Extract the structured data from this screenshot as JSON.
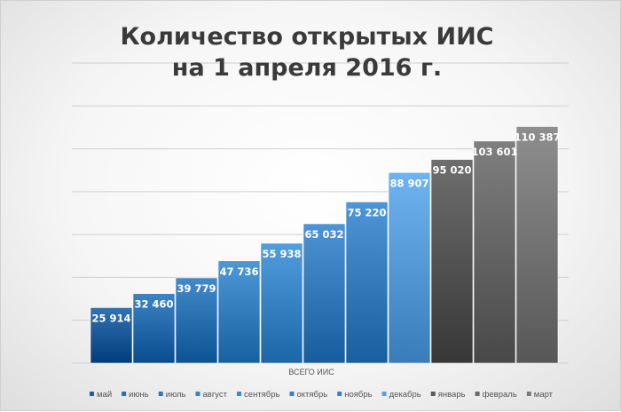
{
  "chart_data": {
    "type": "bar",
    "title": [
      "Количество открытых ИИС",
      "на 1 апреля 2016 г."
    ],
    "xlabel": "",
    "ylabel": "",
    "category": "ВСЕГО ИИС",
    "ylim": [
      0,
      140000
    ],
    "grid": true,
    "legend_position": "bottom",
    "series": [
      {
        "name": "май",
        "value": 25914,
        "label": "25 914",
        "color": "#1f5f9e"
      },
      {
        "name": "июнь",
        "value": 32460,
        "label": "32 460",
        "color": "#2a70b0"
      },
      {
        "name": "июль",
        "value": 39779,
        "label": "39 779",
        "color": "#2e76b6"
      },
      {
        "name": "август",
        "value": 47736,
        "label": "47 736",
        "color": "#3a84c4"
      },
      {
        "name": "сентябрь",
        "value": 55938,
        "label": "55 938",
        "color": "#3e89c9"
      },
      {
        "name": "октябрь",
        "value": 65032,
        "label": "65 032",
        "color": "#3a80c0"
      },
      {
        "name": "ноябрь",
        "value": 75220,
        "label": "75 220",
        "color": "#3a82c2"
      },
      {
        "name": "декабрь",
        "value": 88907,
        "label": "88 907",
        "color": "#5b9fdc"
      },
      {
        "name": "январь",
        "value": 95020,
        "label": "95 020",
        "color": "#5a5a5a"
      },
      {
        "name": "февраль",
        "value": 103601,
        "label": "103 601",
        "color": "#6b6b6b"
      },
      {
        "name": "март",
        "value": 110387,
        "label": "110 387",
        "color": "#7a7a7a"
      }
    ]
  }
}
